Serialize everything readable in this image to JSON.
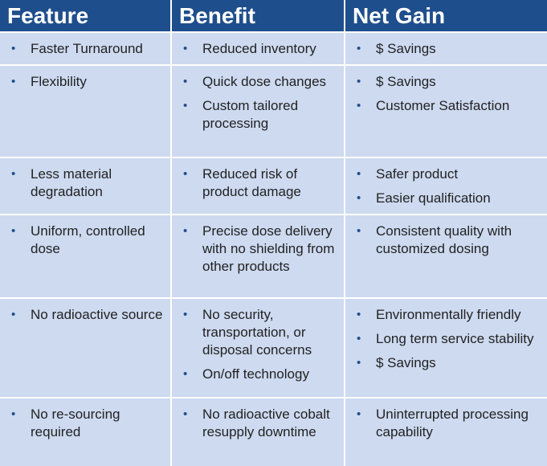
{
  "headers": [
    "Feature",
    "Benefit",
    "Net Gain"
  ],
  "rows": [
    {
      "feature": [
        "Faster Turnaround"
      ],
      "benefit": [
        "Reduced inventory"
      ],
      "gain": [
        "$ Savings"
      ]
    },
    {
      "feature": [
        "Flexibility"
      ],
      "benefit": [
        "Quick dose changes",
        "Custom tailored processing"
      ],
      "gain": [
        "$ Savings",
        "Customer Satisfaction"
      ]
    },
    {
      "feature": [
        "Less material degradation"
      ],
      "benefit": [
        "Reduced risk of product damage"
      ],
      "gain": [
        "Safer product",
        "Easier qualification"
      ]
    },
    {
      "feature": [
        "Uniform, controlled dose"
      ],
      "benefit": [
        "Precise dose delivery with no shielding from other products"
      ],
      "gain": [
        "Consistent quality with customized dosing"
      ]
    },
    {
      "feature": [
        "No radioactive source"
      ],
      "benefit": [
        "No security, transportation, or disposal concerns",
        "On/off technology"
      ],
      "gain": [
        "Environmentally friendly",
        "Long term service stability",
        "$ Savings"
      ]
    },
    {
      "feature": [
        "No re-sourcing required"
      ],
      "benefit": [
        "No radioactive cobalt resupply downtime"
      ],
      "gain": [
        "Uninterrupted processing capability"
      ]
    }
  ],
  "bullet_char": "•",
  "colors": {
    "header_bg": "#1f4e8c",
    "header_text": "#ffffff",
    "cell_bg": "#cddaf0",
    "cell_text": "#222222",
    "divider": "#ffffff"
  }
}
